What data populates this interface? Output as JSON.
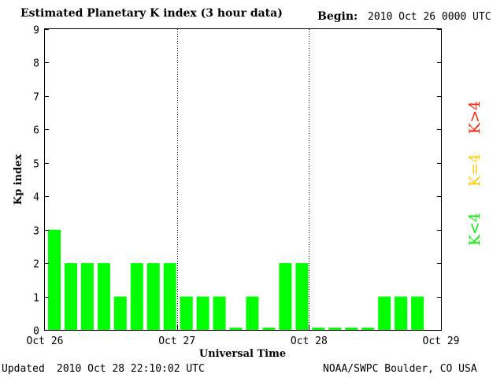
{
  "header": {
    "title": "Estimated Planetary K index (3 hour data)",
    "begin_label": "Begin:",
    "begin_value": "2010 Oct 26 0000 UTC"
  },
  "footer": {
    "updated_label": "Updated",
    "updated_value": "2010 Oct 28 22:10:02 UTC",
    "source": "NOAA/SWPC Boulder, CO USA"
  },
  "legend": [
    {
      "label": "K>4",
      "color": "#ff2200"
    },
    {
      "label": "K=4",
      "color": "#ffcc00"
    },
    {
      "label": "K<4",
      "color": "#00ee00"
    }
  ],
  "chart_data": {
    "type": "bar",
    "ylabel": "Kp index",
    "xlabel": "Universal Time",
    "ylim": [
      0,
      9
    ],
    "yticks": [
      0,
      1,
      2,
      3,
      4,
      5,
      6,
      7,
      8,
      9
    ],
    "xticks": [
      "Oct 26",
      "Oct 27",
      "Oct 28",
      "Oct 29"
    ],
    "day_separators": "dotted",
    "bar_color": "#00ff00",
    "series": [
      {
        "values": [
          3,
          2,
          2,
          2,
          1,
          2,
          2,
          2,
          1,
          1,
          1,
          0,
          1,
          0,
          2,
          2,
          0,
          0,
          0,
          0,
          1,
          1,
          1
        ]
      }
    ]
  }
}
